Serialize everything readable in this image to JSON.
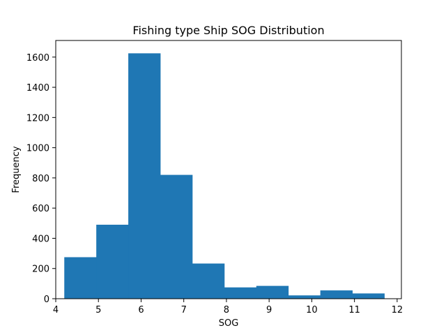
{
  "chart_data": {
    "type": "bar",
    "title": "Fishing type Ship SOG Distribution",
    "xlabel": "SOG",
    "ylabel": "Frequency",
    "xlim": [
      4.0,
      12.1
    ],
    "ylim": [
      0,
      1710
    ],
    "x_ticks": [
      4,
      5,
      6,
      7,
      8,
      9,
      10,
      11,
      12
    ],
    "y_ticks": [
      0,
      200,
      400,
      600,
      800,
      1000,
      1200,
      1400,
      1600
    ],
    "bin_edges": [
      4.2,
      4.95,
      5.7,
      6.45,
      7.2,
      7.95,
      8.7,
      9.45,
      10.2,
      10.95,
      11.7
    ],
    "values": [
      275,
      490,
      1625,
      820,
      233,
      75,
      85,
      22,
      55,
      35
    ],
    "bar_color": "#1f77b4",
    "grid": false,
    "legend": "none"
  }
}
